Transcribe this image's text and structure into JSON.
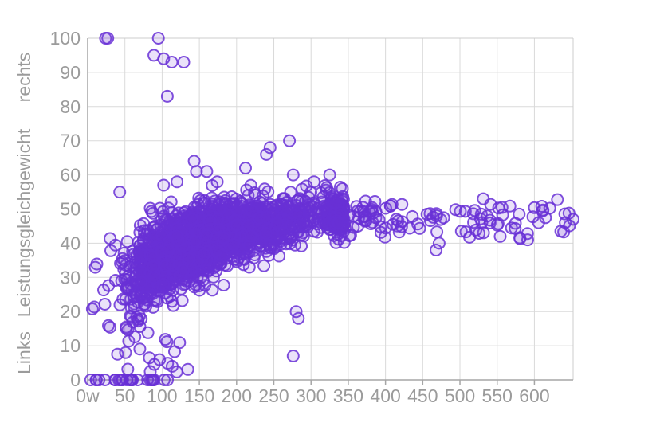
{
  "colors": {
    "background": "#ffffff",
    "grid": "#dadada",
    "frame": "#cccccc",
    "axis": "#a6a6a6",
    "tick_text": "#9b9b9b",
    "point_stroke": "#6930d6",
    "point_fill": "#6930d6"
  },
  "chart_data": {
    "type": "scatter",
    "title": "",
    "xlabel": "",
    "ylabel": "Links Leistungsgleichgewicht rechts",
    "ylabel_parts": [
      "Links",
      "Leistungsgleichgewicht",
      "rechts"
    ],
    "legend": null,
    "grid": true,
    "xlim": [
      0,
      652
    ],
    "ylim": [
      0,
      100
    ],
    "x_tick_values": [
      0,
      50,
      100,
      150,
      200,
      250,
      300,
      350,
      400,
      450,
      500,
      550,
      600
    ],
    "x_tick_labels": [
      "0w",
      "50",
      "100",
      "150",
      "200",
      "250",
      "300",
      "350",
      "400",
      "450",
      "500",
      "550",
      "600"
    ],
    "y_tick_values": [
      0,
      10,
      20,
      30,
      40,
      50,
      60,
      70,
      80,
      90,
      100
    ],
    "y_tick_labels": [
      "0",
      "10",
      "20",
      "30",
      "40",
      "50",
      "60",
      "70",
      "80",
      "90",
      "100"
    ],
    "marker": {
      "shape": "circle",
      "radius_px": 7,
      "stroke_width_px": 2,
      "stroke_opacity": 0.85,
      "fill_opacity": 0.14
    },
    "points_outliers": [
      [
        24,
        100
      ],
      [
        27,
        100
      ],
      [
        95,
        100
      ],
      [
        89,
        95
      ],
      [
        102,
        94
      ],
      [
        113,
        93
      ],
      [
        129,
        93
      ],
      [
        107,
        83
      ],
      [
        143,
        64
      ],
      [
        146,
        61
      ],
      [
        160,
        61
      ],
      [
        212,
        62
      ],
      [
        240,
        66
      ],
      [
        245,
        68
      ],
      [
        271,
        70
      ],
      [
        276,
        60
      ],
      [
        325,
        60
      ],
      [
        304,
        58
      ],
      [
        174,
        58
      ],
      [
        102,
        57
      ],
      [
        120,
        58
      ],
      [
        43,
        55
      ],
      [
        652,
        47
      ],
      [
        468,
        38
      ],
      [
        472,
        40
      ],
      [
        591,
        41
      ],
      [
        554,
        42
      ],
      [
        276,
        7
      ],
      [
        280,
        20
      ],
      [
        283,
        18
      ]
    ],
    "point_cloud_model": {
      "seed": 1337,
      "cluster": {
        "count": 1950,
        "x_log_mean": 5.043,
        "x_log_sd": 0.45,
        "x_min": 26,
        "x_max": 345,
        "y_base": 50,
        "y_drop": 35,
        "y_tau": 115,
        "y_sd_max": 7,
        "y_sd_slope": 90,
        "y_sd_min": 3.4,
        "y_min": 15,
        "y_max": 57
      },
      "right_tail": {
        "count": 130,
        "x_min": 330,
        "x_span": 318,
        "x_pow": 1.6,
        "y_mean": 47.3,
        "y_sd": 2.8,
        "y_min": 37,
        "y_max": 53
      },
      "zero_band": {
        "count": 26,
        "x_min": 2,
        "x_max": 112,
        "y": 0
      },
      "low_scatter": {
        "count": 22,
        "x_min": 18,
        "x_max": 135,
        "y_min": 2,
        "y_max": 16
      },
      "left_scatter": {
        "count": 9,
        "x_min": 6,
        "x_max": 34,
        "y_min": 18,
        "y_max": 42
      }
    }
  }
}
